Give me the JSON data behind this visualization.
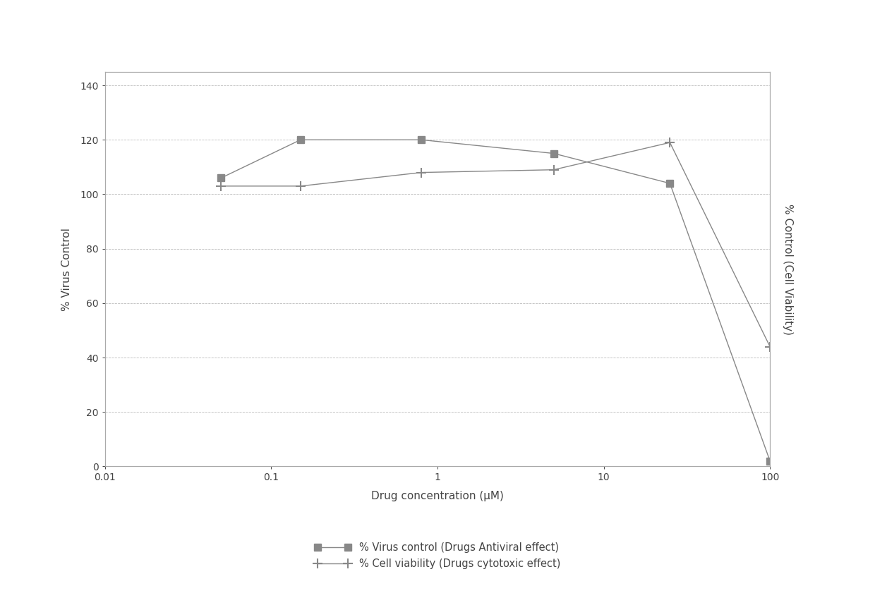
{
  "virus_x": [
    0.05,
    0.15,
    0.8,
    5,
    25,
    100
  ],
  "virus_y": [
    106,
    120,
    120,
    115,
    104,
    2
  ],
  "cell_x": [
    0.05,
    0.15,
    0.8,
    5,
    25,
    100
  ],
  "cell_y": [
    103,
    103,
    108,
    109,
    119,
    44
  ],
  "line_color": "#888888",
  "xlabel": "Drug concentration (μM)",
  "ylabel_left": "% Virus Control",
  "ylabel_right": "% Control (Cell Viability)",
  "legend_virus": "% Virus control (Drugs Antiviral effect)",
  "legend_cell": "% Cell viability (Drugs cytotoxic effect)",
  "ylim": [
    0,
    145
  ],
  "yticks": [
    0,
    20,
    40,
    60,
    80,
    100,
    120,
    140
  ],
  "xlim": [
    0.01,
    100
  ],
  "background_color": "#ffffff",
  "grid_color": "#bbbbbb"
}
